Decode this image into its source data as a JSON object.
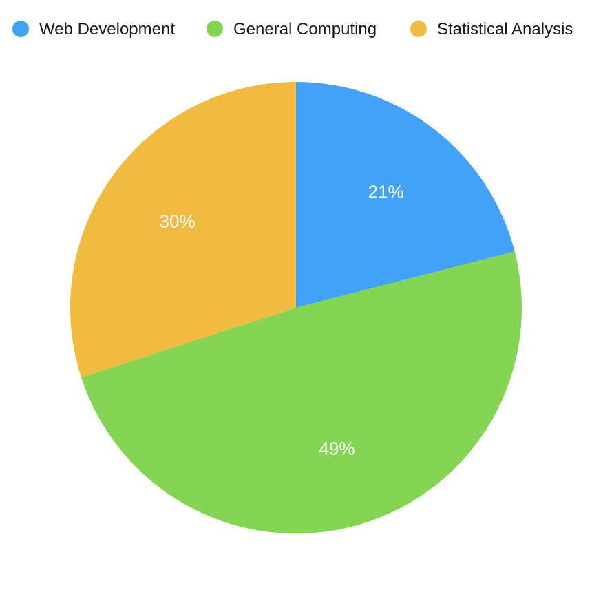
{
  "chart_data": {
    "type": "pie",
    "title": "",
    "legend_position": "top",
    "categories": [
      "Web Development",
      "General Computing",
      "Statistical Analysis"
    ],
    "values": [
      21,
      49,
      30
    ],
    "value_labels": [
      "21%",
      "49%",
      "30%"
    ],
    "colors": [
      "#42a2f7",
      "#84d554",
      "#f0bb40"
    ]
  }
}
